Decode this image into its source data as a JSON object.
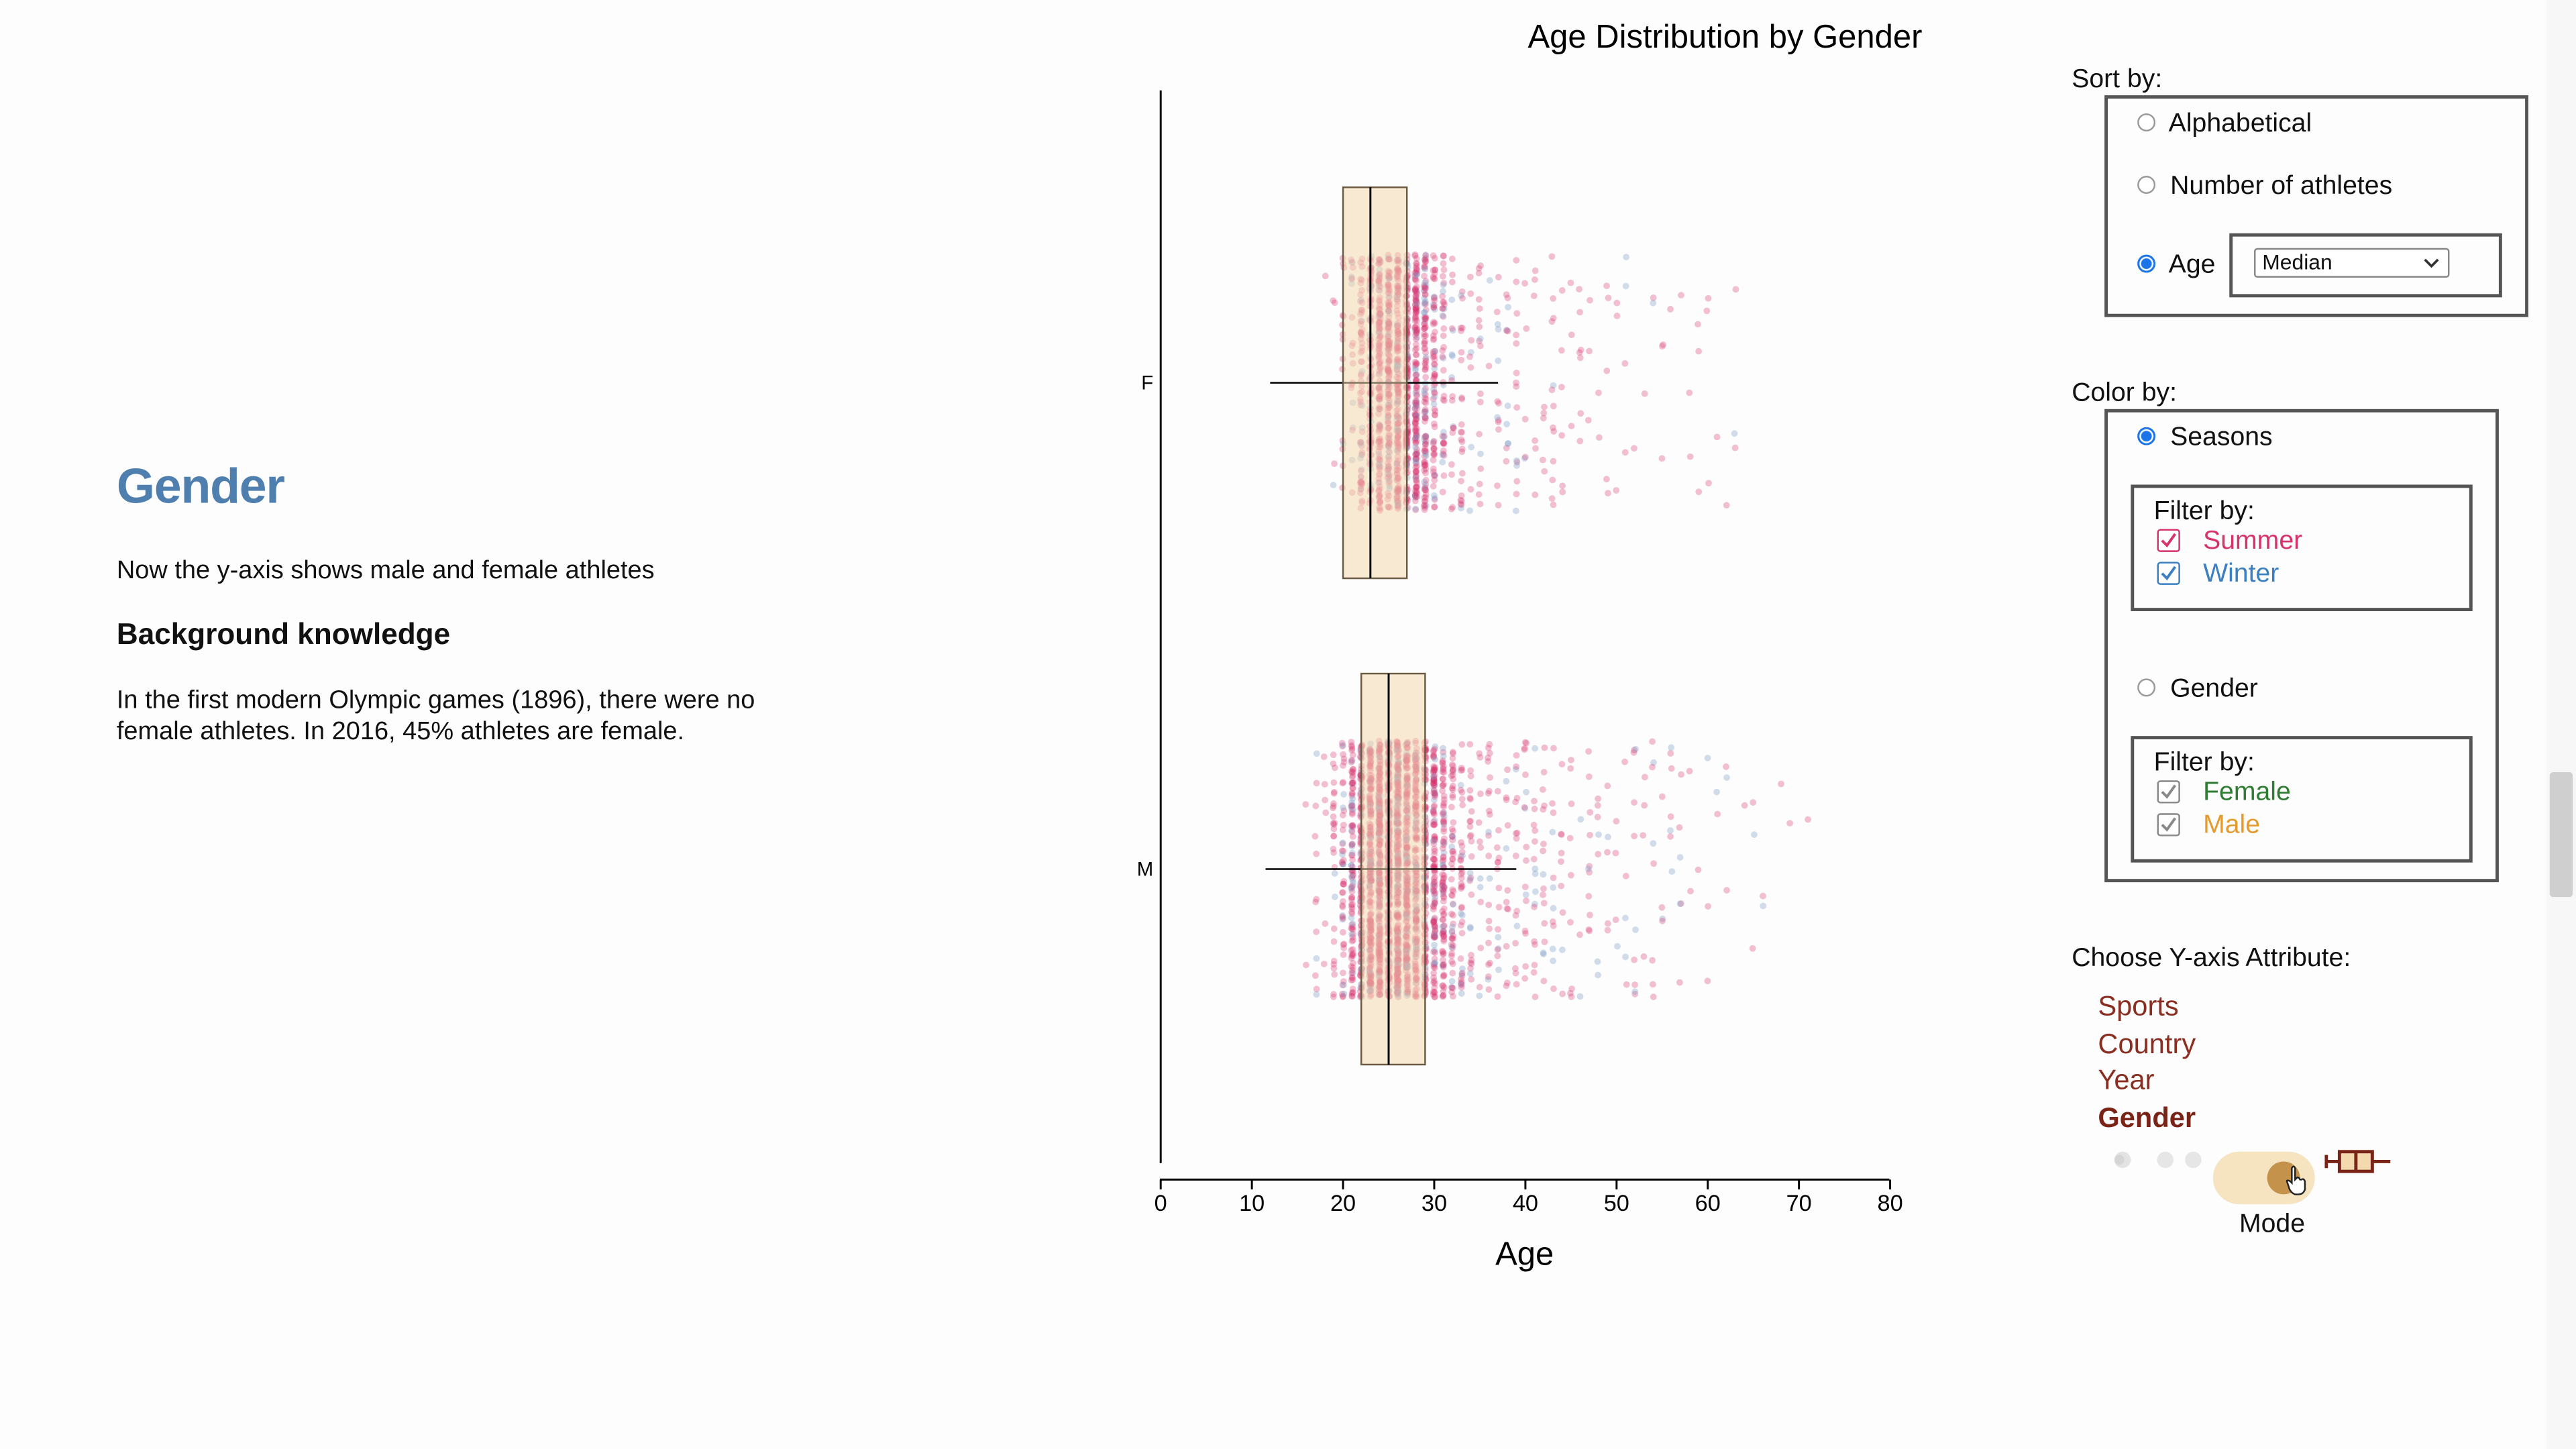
{
  "story": {
    "title": "Gender",
    "intro": "Now the y-axis shows male and female athletes",
    "subheading": "Background knowledge",
    "paragraph": "In the first modern Olympic games (1896), there were no female athletes. In 2016, 45% athletes are female."
  },
  "controls": {
    "sort_by": {
      "label": "Sort by:",
      "options": [
        "Alphabetical",
        "Number of athletes",
        "Age"
      ],
      "selected": "Age",
      "age_select_value": "Median"
    },
    "color_by": {
      "label": "Color by:",
      "seasons_label": "Seasons",
      "gender_label": "Gender",
      "selected": "Seasons",
      "seasons_filter": {
        "label": "Filter by:",
        "items": [
          {
            "label": "Summer",
            "checked": true,
            "color": "#d6336c"
          },
          {
            "label": "Winter",
            "checked": true,
            "color": "#3a7fc1"
          }
        ]
      },
      "gender_filter": {
        "label": "Filter by:",
        "items": [
          {
            "label": "Female",
            "checked": true,
            "color": "#2e7d32"
          },
          {
            "label": "Male",
            "checked": true,
            "color": "#e69a2e"
          }
        ]
      }
    },
    "y_axis": {
      "label": "Choose Y-axis Attribute:",
      "options": [
        "Sports",
        "Country",
        "Year",
        "Gender"
      ],
      "selected": "Gender"
    },
    "mode": {
      "label": "Mode",
      "toggle_on": true,
      "track_color": "#f6e3bf",
      "knob_color": "#c4924b",
      "boxplot_icon_color": "#7a2418"
    }
  },
  "chart_data": {
    "type": "scatter",
    "title": "Age Distribution by Gender",
    "xlabel": "Age",
    "ylabel": "",
    "xlim": [
      0,
      80
    ],
    "xticks": [
      0,
      10,
      20,
      30,
      40,
      50,
      60,
      70,
      80
    ],
    "categories": [
      "F",
      "M"
    ],
    "colors": {
      "summer": "#d6336c",
      "winter": "#7f9fc7",
      "box_fill": "#f3d9ae",
      "box_stroke": "#6b5a44"
    },
    "boxplots": [
      {
        "category": "F",
        "min": 12,
        "q1": 20,
        "median": 23,
        "q3": 27,
        "max": 37,
        "point_min": 13,
        "point_max": 68
      },
      {
        "category": "M",
        "min": 11.5,
        "q1": 22,
        "median": 25,
        "q3": 29,
        "max": 39,
        "point_min": 10,
        "point_max": 72
      }
    ]
  }
}
